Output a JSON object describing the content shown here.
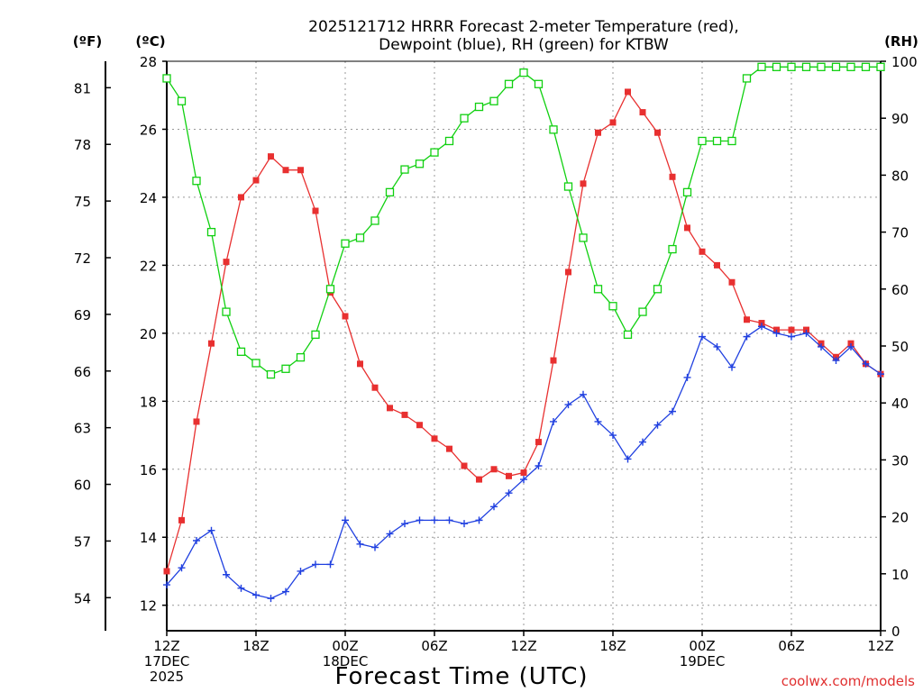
{
  "chart_data": {
    "type": "line",
    "title": [
      "2025121712 HRRR Forecast 2-meter Temperature (red),",
      "Dewpoint (blue), RH (green) for KTBW"
    ],
    "xlabel": "Forecast Time (UTC)",
    "watermark": "coolwx.com/models",
    "units": {
      "fahrenheit": "(ºF)",
      "celsius": "(ºC)",
      "rh": "(RH)"
    },
    "grid": true,
    "x_ticks": [
      {
        "hour": 0,
        "lines": [
          "12Z",
          "17DEC",
          "2025"
        ]
      },
      {
        "hour": 6,
        "lines": [
          "18Z"
        ]
      },
      {
        "hour": 12,
        "lines": [
          "00Z",
          "18DEC"
        ]
      },
      {
        "hour": 18,
        "lines": [
          "06Z"
        ]
      },
      {
        "hour": 24,
        "lines": [
          "12Z"
        ]
      },
      {
        "hour": 30,
        "lines": [
          "18Z"
        ]
      },
      {
        "hour": 36,
        "lines": [
          "00Z",
          "19DEC"
        ]
      },
      {
        "hour": 42,
        "lines": [
          "06Z"
        ]
      },
      {
        "hour": 48,
        "lines": [
          "12Z"
        ]
      }
    ],
    "xlim": [
      0,
      48
    ],
    "y_celsius": {
      "lim": [
        11.25,
        28
      ],
      "ticks": [
        12,
        14,
        16,
        18,
        20,
        22,
        24,
        26,
        28
      ]
    },
    "y_fahrenheit": {
      "ticks": [
        54,
        57,
        60,
        63,
        66,
        69,
        72,
        75,
        78,
        81
      ]
    },
    "y_rh": {
      "lim": [
        0,
        100
      ],
      "ticks": [
        0,
        10,
        20,
        30,
        40,
        50,
        60,
        70,
        80,
        90,
        100
      ]
    },
    "series": [
      {
        "name": "Temperature",
        "color": "#e83030",
        "marker": "filled-square",
        "axis": "celsius",
        "values": [
          13.0,
          14.5,
          17.4,
          19.7,
          22.1,
          24.0,
          24.5,
          25.2,
          24.8,
          24.8,
          23.6,
          21.2,
          20.5,
          19.1,
          18.4,
          17.8,
          17.6,
          17.3,
          16.9,
          16.6,
          16.1,
          15.7,
          16.0,
          15.8,
          15.9,
          16.8,
          19.2,
          21.8,
          24.4,
          25.9,
          26.2,
          27.1,
          26.5,
          25.9,
          24.6,
          23.1,
          22.4,
          22.0,
          21.5,
          20.4,
          20.3,
          20.1,
          20.1,
          20.1,
          19.7,
          19.3,
          19.7,
          19.1,
          18.8
        ]
      },
      {
        "name": "Dewpoint",
        "color": "#2040e0",
        "marker": "plus",
        "axis": "celsius",
        "values": [
          12.6,
          13.1,
          13.9,
          14.2,
          12.9,
          12.5,
          12.3,
          12.2,
          12.4,
          13.0,
          13.2,
          13.2,
          14.5,
          13.8,
          13.7,
          14.1,
          14.4,
          14.5,
          14.5,
          14.5,
          14.4,
          14.5,
          14.9,
          15.3,
          15.7,
          16.1,
          17.4,
          17.9,
          18.2,
          17.4,
          17.0,
          16.3,
          16.8,
          17.3,
          17.7,
          18.7,
          19.9,
          19.6,
          19.0,
          19.9,
          20.2,
          20.0,
          19.9,
          20.0,
          19.6,
          19.2,
          19.6,
          19.1,
          18.8
        ]
      },
      {
        "name": "RH",
        "color": "#10d010",
        "marker": "open-square",
        "axis": "rh",
        "values": [
          97,
          93,
          79,
          70,
          56,
          49,
          47,
          45,
          46,
          48,
          52,
          60,
          68,
          69,
          72,
          77,
          81,
          82,
          84,
          86,
          90,
          92,
          93,
          96,
          98,
          96,
          88,
          78,
          69,
          60,
          57,
          52,
          56,
          60,
          67,
          77,
          86,
          86,
          86,
          97,
          99,
          99,
          99,
          99,
          99,
          99,
          99,
          99,
          99
        ]
      }
    ]
  }
}
